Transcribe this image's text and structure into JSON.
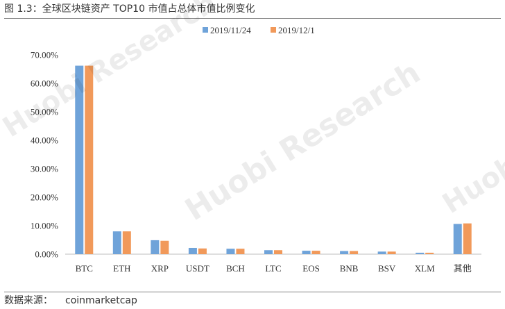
{
  "figure": {
    "title": "图 1.3：全球区块链资产 TOP10 市值占总体市值比例变化",
    "source_label": "数据来源：",
    "source_value": "coinmarketcap",
    "watermark_text": "Huobi Research"
  },
  "chart_data": {
    "type": "bar",
    "title": "",
    "xlabel": "",
    "ylabel": "",
    "categories": [
      "BTC",
      "ETH",
      "XRP",
      "USDT",
      "BCH",
      "LTC",
      "EOS",
      "BNB",
      "BSV",
      "XLM",
      "其他"
    ],
    "series": [
      {
        "name": "2019/11/24",
        "color": "#6fa3d9",
        "values": [
          66.2,
          8.0,
          4.9,
          2.2,
          1.9,
          1.4,
          1.2,
          1.1,
          0.9,
          0.5,
          10.6
        ]
      },
      {
        "name": "2019/12/1",
        "color": "#f1995a",
        "values": [
          66.2,
          8.0,
          4.7,
          2.0,
          1.9,
          1.4,
          1.2,
          1.1,
          0.9,
          0.5,
          10.8
        ]
      }
    ],
    "ylim": [
      0,
      70
    ],
    "yticks": [
      "0.00%",
      "10.00%",
      "20.00%",
      "30.00%",
      "40.00%",
      "50.00%",
      "60.00%",
      "70.00%"
    ],
    "grid": false,
    "legend_position": "top-center"
  }
}
